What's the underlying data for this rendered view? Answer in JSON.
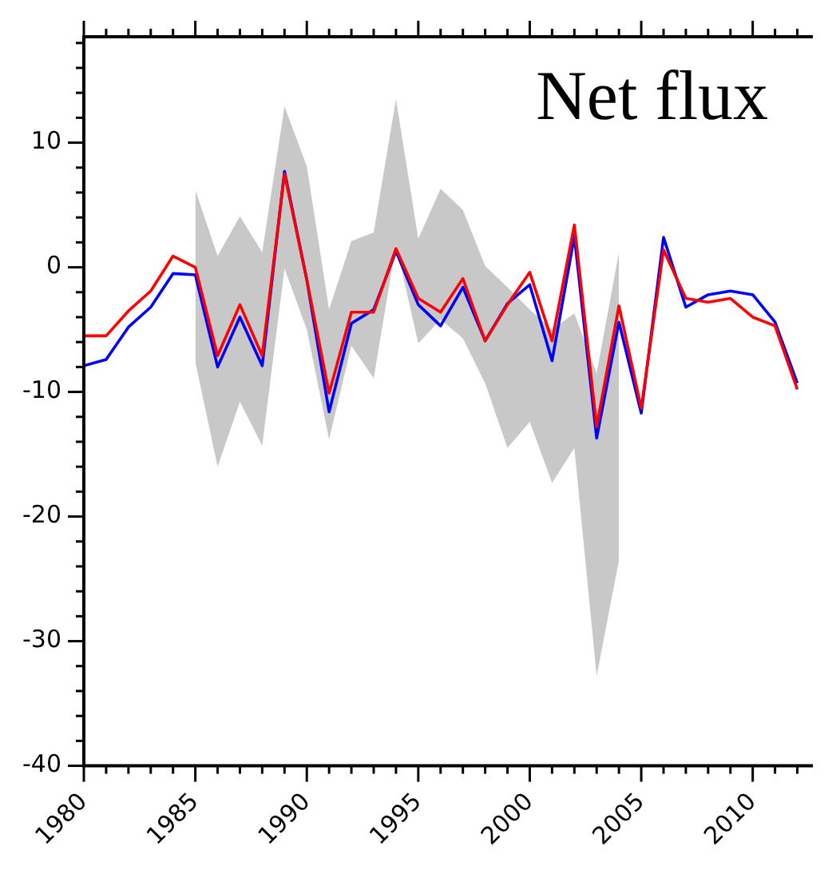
{
  "chart_data": {
    "type": "line",
    "title": "Net flux",
    "x": [
      1980,
      1981,
      1982,
      1983,
      1984,
      1985,
      1986,
      1987,
      1988,
      1989,
      1990,
      1991,
      1992,
      1993,
      1994,
      1995,
      1996,
      1997,
      1998,
      1999,
      2000,
      2001,
      2002,
      2003,
      2004,
      2005,
      2006,
      2007,
      2008,
      2009,
      2010,
      2011,
      2012
    ],
    "series": [
      {
        "type": "area",
        "color": "#c8c8c8",
        "x": [
          1985,
          1986,
          1987,
          1988,
          1989,
          1990,
          1991,
          1992,
          1993,
          1994,
          1995,
          1996,
          1997,
          1998,
          1999,
          2000,
          2001,
          2002,
          2003,
          2004
        ],
        "values": [
          null,
          null,
          null,
          null,
          null,
          null,
          null,
          null,
          null,
          null,
          null,
          null,
          null,
          null,
          null,
          null,
          null,
          null,
          null,
          null
        ],
        "upper": [
          6.2,
          0.9,
          4.1,
          1.2,
          12.9,
          8.1,
          -3.4,
          2.1,
          2.8,
          13.5,
          2.3,
          6.3,
          4.6,
          0.1,
          -1.6,
          -3.4,
          -5,
          -3.7,
          -8.5,
          1.2
        ],
        "lower": [
          -7.6,
          -16,
          -10.8,
          -14.3,
          -0.1,
          -5,
          -13.8,
          -6.3,
          -8.9,
          1.8,
          -6.1,
          -4.2,
          -5.7,
          -9.3,
          -14.5,
          -12.4,
          -17.3,
          -14.5,
          -32.8,
          -23.5
        ]
      },
      {
        "color": "#0000ff",
        "values": [
          -7.9,
          -7.4,
          -4.8,
          -3.2,
          -0.5,
          -0.6,
          -8,
          -4,
          -7.9,
          7.7,
          -1,
          -11.6,
          -4.5,
          -3.4,
          1.3,
          -3,
          -4.7,
          -1.6,
          -5.9,
          -2.9,
          -1.4,
          -7.5,
          2.5,
          -13.7,
          -4.4,
          -11.7,
          2.4,
          -3.2,
          -2.2,
          -1.9,
          -2.2,
          -4.4,
          -9.3
        ]
      },
      {
        "color": "#ff0000",
        "values": [
          -5.5,
          -5.5,
          -3.5,
          -1.9,
          0.9,
          0,
          -7.1,
          -3,
          -7.1,
          7.5,
          -1,
          -10.1,
          -3.6,
          -3.6,
          1.5,
          -2.5,
          -3.6,
          -0.9,
          -5.9,
          -3,
          -0.4,
          -5.9,
          3.4,
          -12.8,
          -3.1,
          -11.3,
          1.4,
          -2.5,
          -2.8,
          -2.5,
          -4,
          -4.7,
          -9.8
        ]
      }
    ],
    "xlim": [
      1980,
      2012.7
    ],
    "xticks": [
      1980,
      {
        "value": 1981,
        "label": null
      },
      {
        "value": 1982,
        "label": null
      },
      {
        "value": 1983,
        "label": null
      },
      {
        "value": 1984,
        "label": null
      },
      1985,
      {
        "value": 1986,
        "label": null
      },
      {
        "value": 1987,
        "label": null
      },
      {
        "value": 1988,
        "label": null
      },
      {
        "value": 1989,
        "label": null
      },
      1990,
      {
        "value": 1991,
        "label": null
      },
      {
        "value": 1992,
        "label": null
      },
      {
        "value": 1993,
        "label": null
      },
      {
        "value": 1994,
        "label": null
      },
      1995,
      {
        "value": 1996,
        "label": null
      },
      {
        "value": 1997,
        "label": null
      },
      {
        "value": 1998,
        "label": null
      },
      {
        "value": 1999,
        "label": null
      },
      2000,
      {
        "value": 2001,
        "label": null
      },
      {
        "value": 2002,
        "label": null
      },
      {
        "value": 2003,
        "label": null
      },
      {
        "value": 2004,
        "label": null
      },
      2005,
      {
        "value": 2006,
        "label": null
      },
      {
        "value": 2007,
        "label": null
      },
      {
        "value": 2008,
        "label": null
      },
      {
        "value": 2009,
        "label": null
      },
      2010,
      {
        "value": 2011,
        "label": null
      },
      {
        "value": 2012,
        "label": null
      }
    ],
    "ylim": [
      -40,
      18.5
    ],
    "yticks": [
      -40,
      {
        "value": -38,
        "label": null
      },
      {
        "value": -36,
        "label": null
      },
      {
        "value": -34,
        "label": null
      },
      {
        "value": -32,
        "label": null
      },
      -30,
      {
        "value": -28,
        "label": null
      },
      {
        "value": -26,
        "label": null
      },
      {
        "value": -24,
        "label": null
      },
      {
        "value": -22,
        "label": null
      },
      -20,
      {
        "value": -18,
        "label": null
      },
      {
        "value": -16,
        "label": null
      },
      {
        "value": -14,
        "label": null
      },
      {
        "value": -12,
        "label": null
      },
      -10,
      {
        "value": -8,
        "label": null
      },
      {
        "value": -6,
        "label": null
      },
      {
        "value": -4,
        "label": null
      },
      {
        "value": -2,
        "label": null
      },
      0,
      {
        "value": 2,
        "label": null
      },
      {
        "value": 4,
        "label": null
      },
      {
        "value": 6,
        "label": null
      },
      {
        "value": 8,
        "label": null
      },
      10,
      {
        "value": 12,
        "label": null
      },
      {
        "value": 14,
        "label": null
      },
      {
        "value": 16,
        "label": null
      },
      {
        "value": 18,
        "label": null
      }
    ],
    "grid": false,
    "legend": false,
    "marker": "none",
    "line_style": "solid"
  }
}
